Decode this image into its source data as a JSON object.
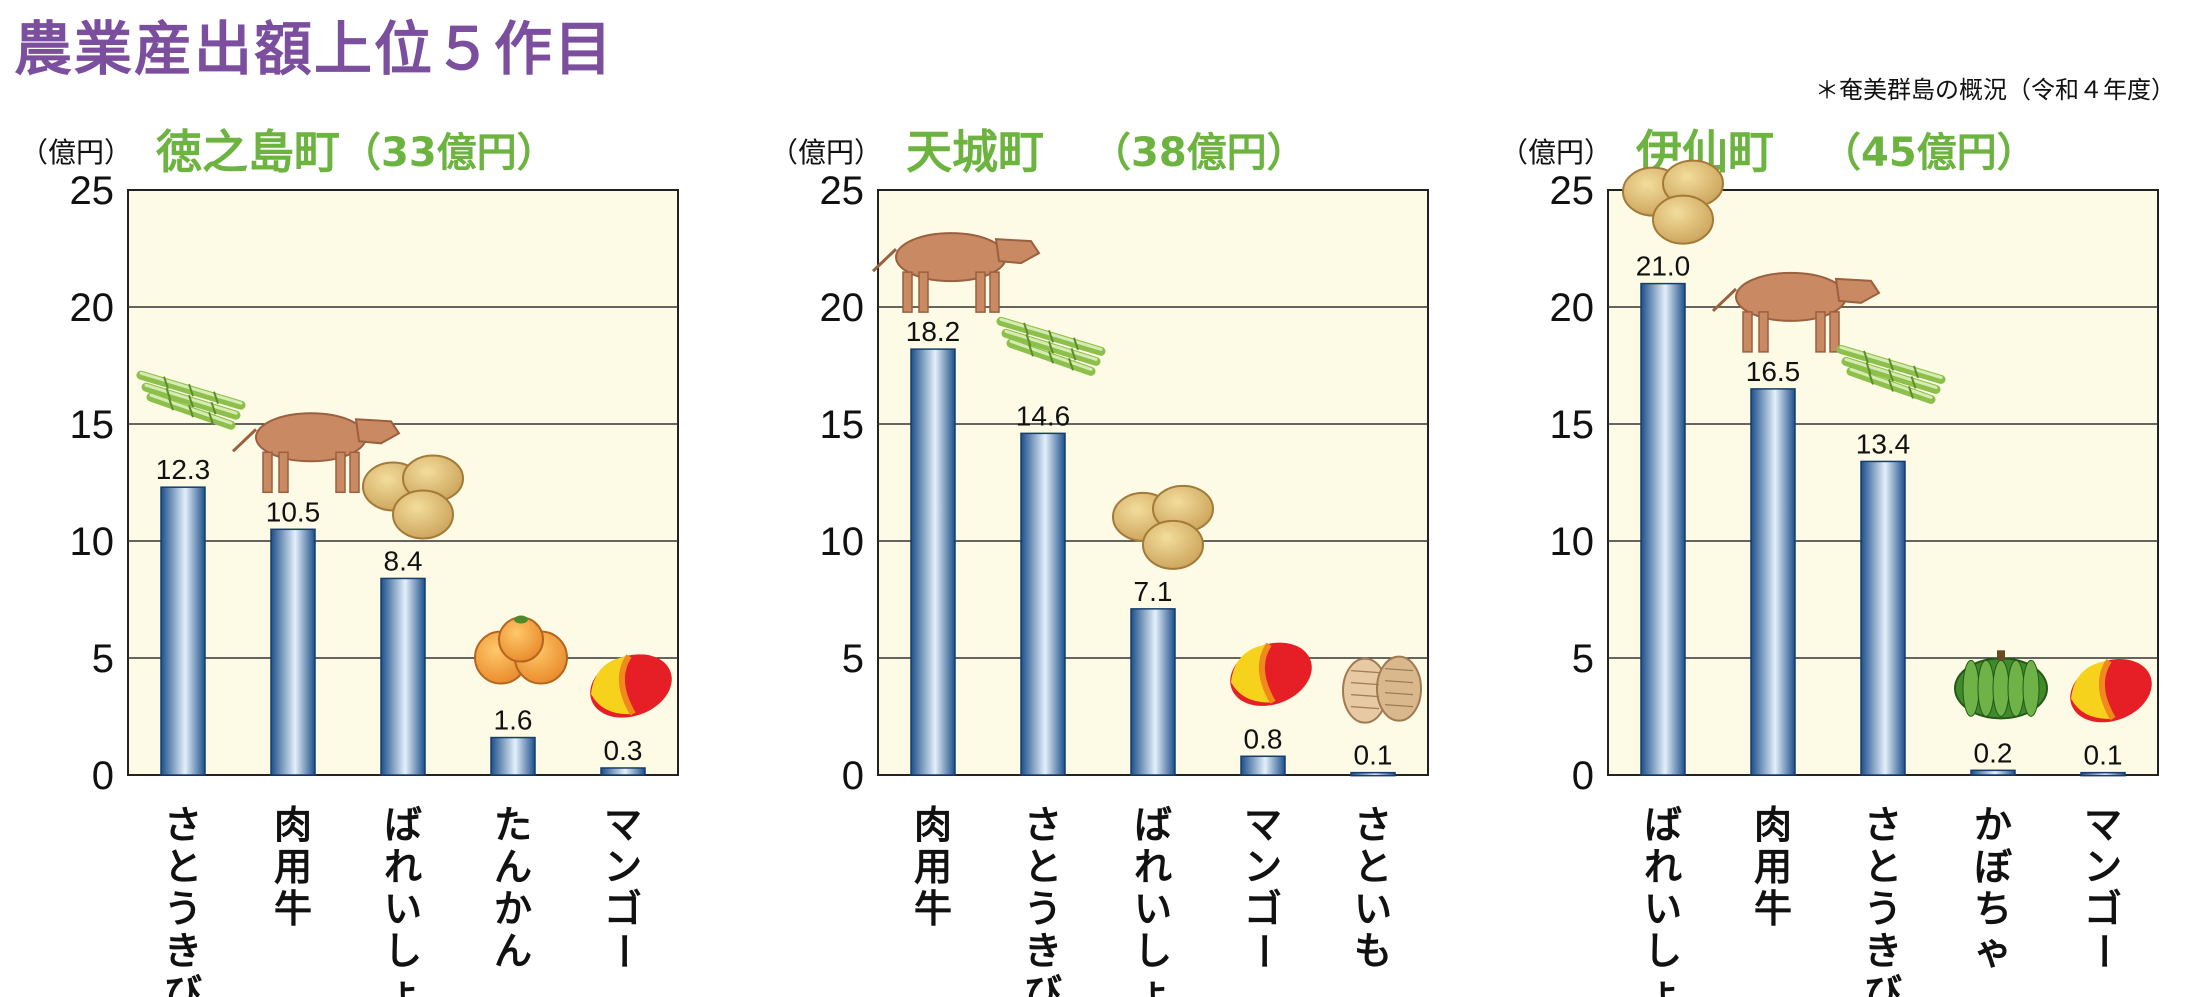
{
  "title": "農業産出額上位５作目",
  "source_note": "＊奄美群島の概況（令和４年度）",
  "colors": {
    "title": "#7b4f9e",
    "town_name": "#6cb33f",
    "plot_background": "#fdfbe6",
    "bar_dark": "#1c4f8a",
    "bar_light": "#e4f0fa"
  },
  "chart_data": [
    {
      "type": "bar",
      "title": "徳之島町",
      "subtitle": "（33億円）",
      "ylabel": "（億円）",
      "ylim": [
        0,
        25
      ],
      "yticks": [
        0,
        5,
        10,
        15,
        20,
        25
      ],
      "grid": true,
      "categories": [
        "さとうきび",
        "肉用牛",
        "ばれいしょ",
        "たんかん",
        "マンゴー"
      ],
      "values": [
        12.3,
        10.5,
        8.4,
        1.6,
        0.3
      ],
      "value_labels": [
        "12.3",
        "10.5",
        "8.4",
        "1.6",
        "0.3"
      ],
      "icons": [
        "sugarcane-icon",
        "cattle-icon",
        "potato-icon",
        "tankan-icon",
        "mango-icon"
      ]
    },
    {
      "type": "bar",
      "title": "天城町",
      "subtitle": "（38億円）",
      "ylabel": "（億円）",
      "ylim": [
        0,
        25
      ],
      "yticks": [
        0,
        5,
        10,
        15,
        20,
        25
      ],
      "grid": true,
      "categories": [
        "肉用牛",
        "さとうきび",
        "ばれいしょ",
        "マンゴー",
        "さといも"
      ],
      "values": [
        18.2,
        14.6,
        7.1,
        0.8,
        0.1
      ],
      "value_labels": [
        "18.2",
        "14.6",
        "7.1",
        "0.8",
        "0.1"
      ],
      "icons": [
        "cattle-icon",
        "sugarcane-icon",
        "potato-icon",
        "mango-icon",
        "taro-icon"
      ]
    },
    {
      "type": "bar",
      "title": "伊仙町",
      "subtitle": "（45億円）",
      "ylabel": "（億円）",
      "ylim": [
        0,
        25
      ],
      "yticks": [
        0,
        5,
        10,
        15,
        20,
        25
      ],
      "grid": true,
      "categories": [
        "ばれいしょ",
        "肉用牛",
        "さとうきび",
        "かぼちゃ",
        "マンゴー"
      ],
      "values": [
        21.0,
        16.5,
        13.4,
        0.2,
        0.1
      ],
      "value_labels": [
        "21.0",
        "16.5",
        "13.4",
        "0.2",
        "0.1"
      ],
      "icons": [
        "potato-icon",
        "cattle-icon",
        "sugarcane-icon",
        "pumpkin-icon",
        "mango-icon"
      ]
    }
  ]
}
